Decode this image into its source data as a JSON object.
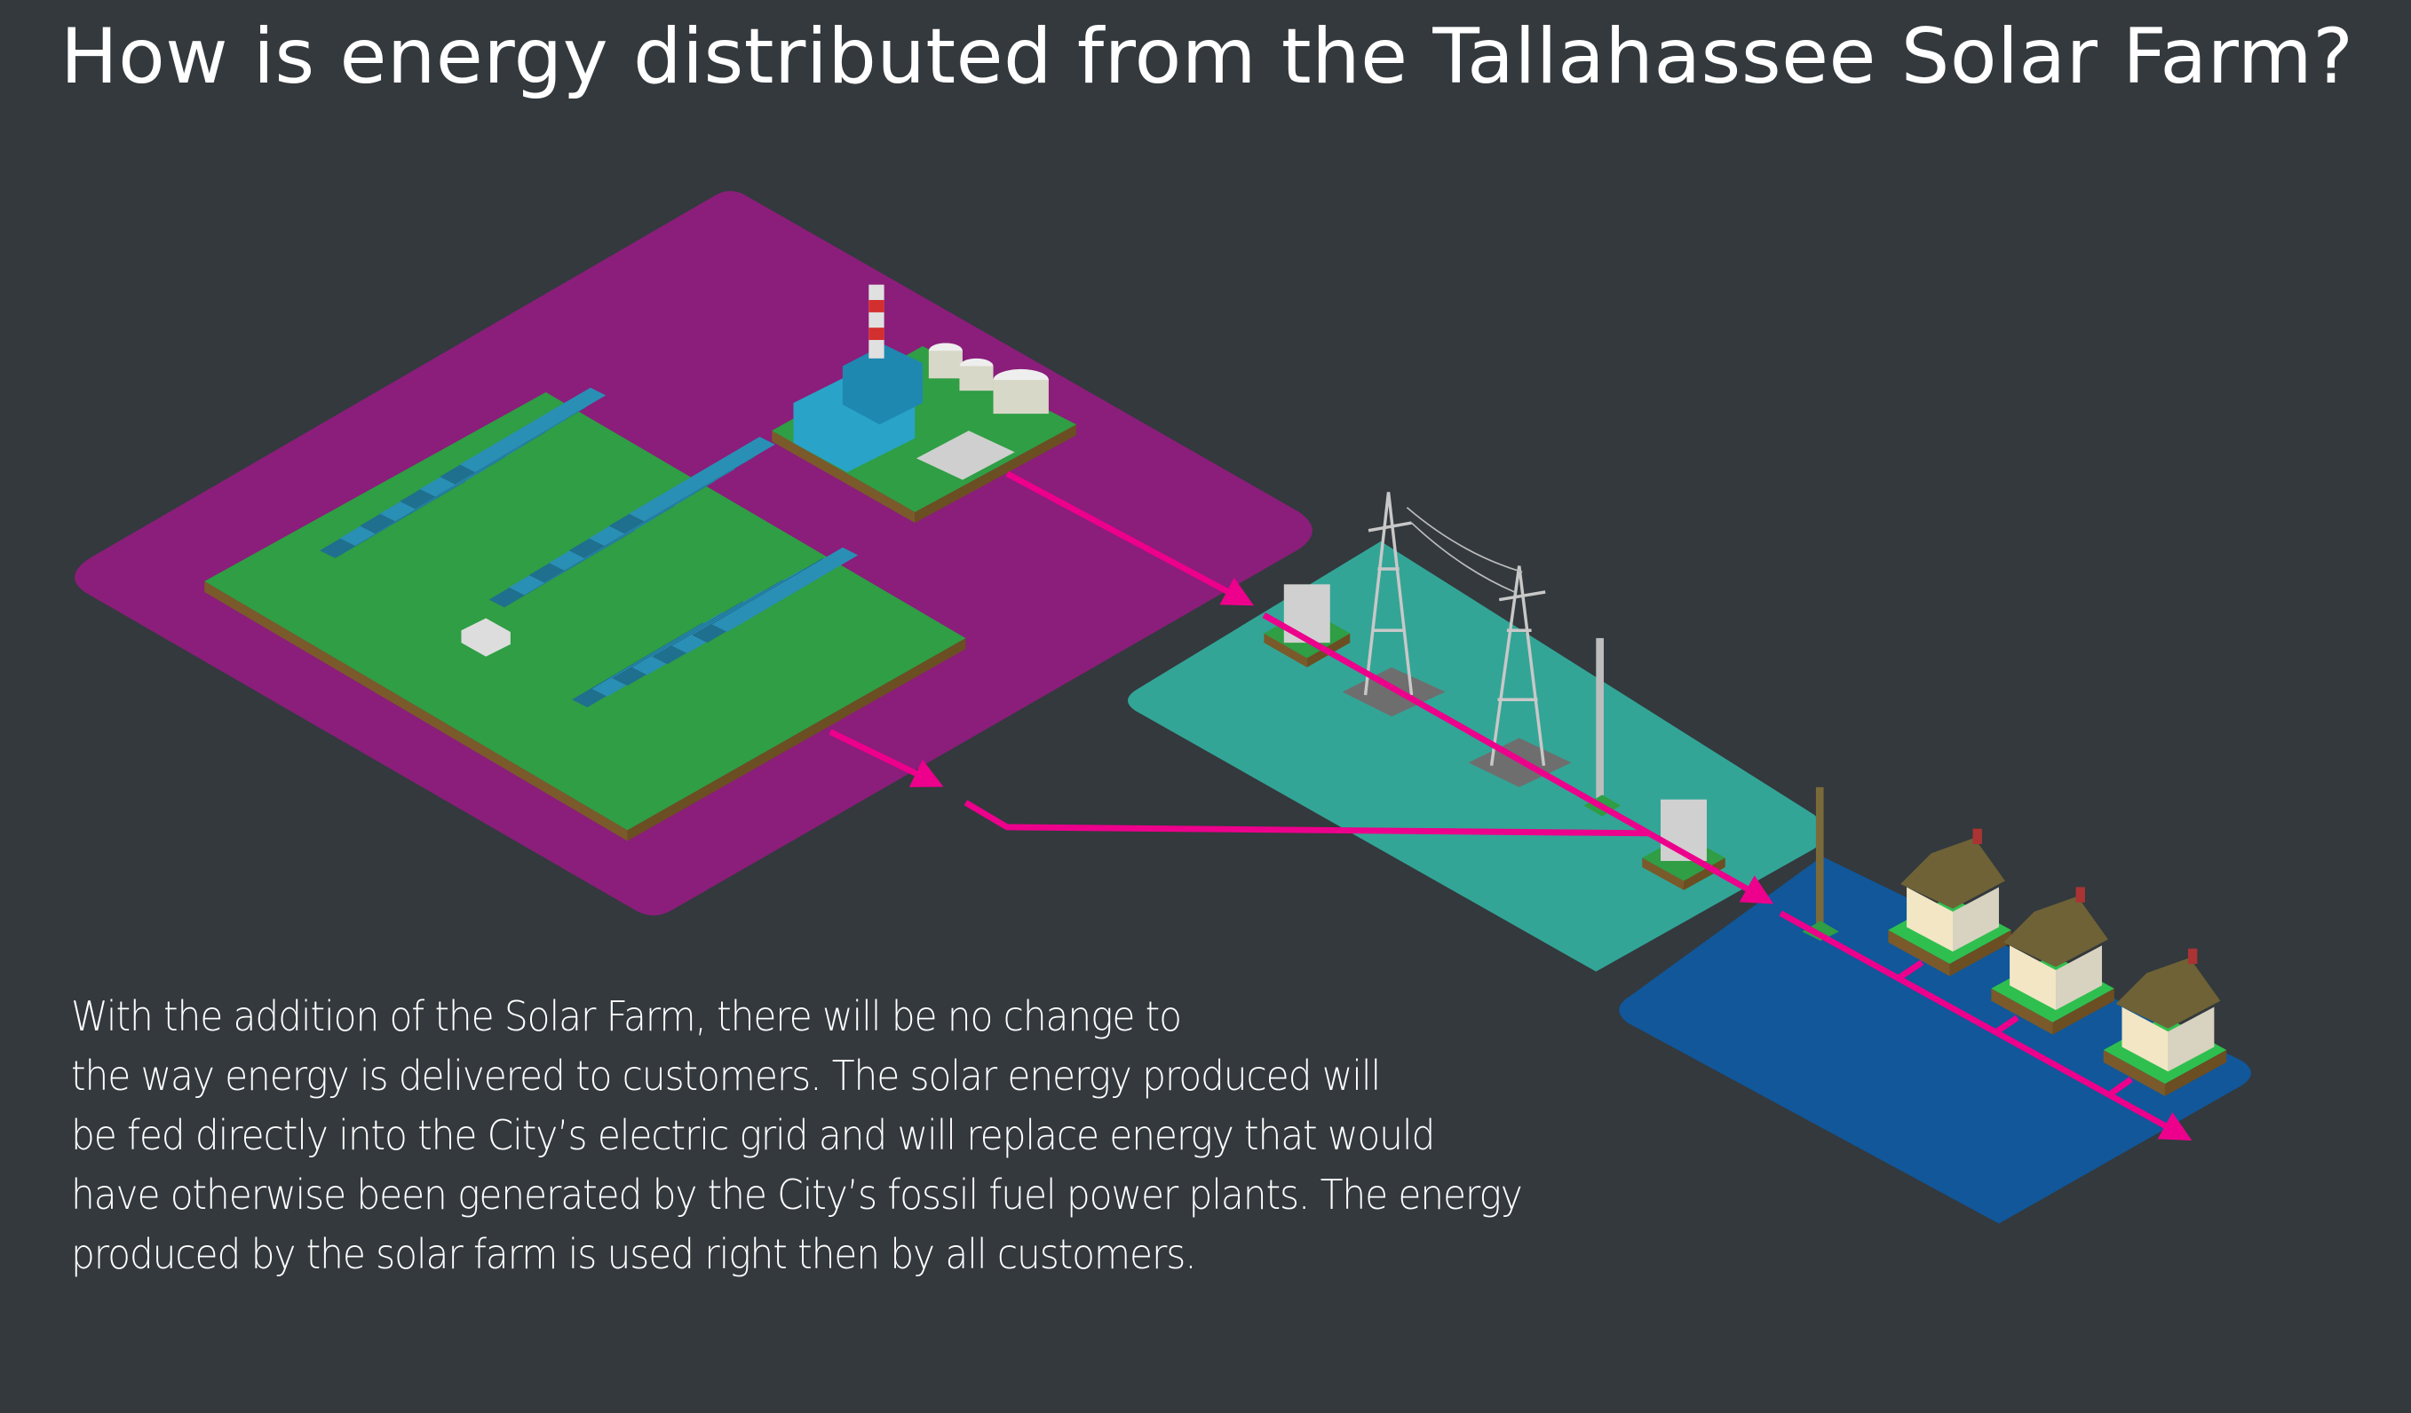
{
  "title": "How is energy distributed from the Tallahassee Solar Farm?",
  "description_lines": [
    "With the addition of the Solar Farm, there will be no change to",
    "the way energy is delivered to customers. The solar energy produced will",
    "be fed directly into the City’s electric grid and will replace energy that would",
    "have otherwise been generated by the City’s fossil fuel power plants. The energy",
    "produced by the solar farm is used right then by all customers."
  ],
  "colors": {
    "background": "#33393d",
    "generation_zone": "#8a1e7a",
    "transmission_zone": "#33a596",
    "distribution_zone": "#11579a",
    "energy_flow_arrow": "#ec008c",
    "grass": "#2f9e44",
    "solar_panel": "#2a8fb5"
  },
  "icons": [
    "solar-panel-array-icon",
    "power-plant-icon",
    "transformer-icon",
    "transmission-tower-icon",
    "utility-pole-icon",
    "house-icon",
    "arrow-icon"
  ]
}
